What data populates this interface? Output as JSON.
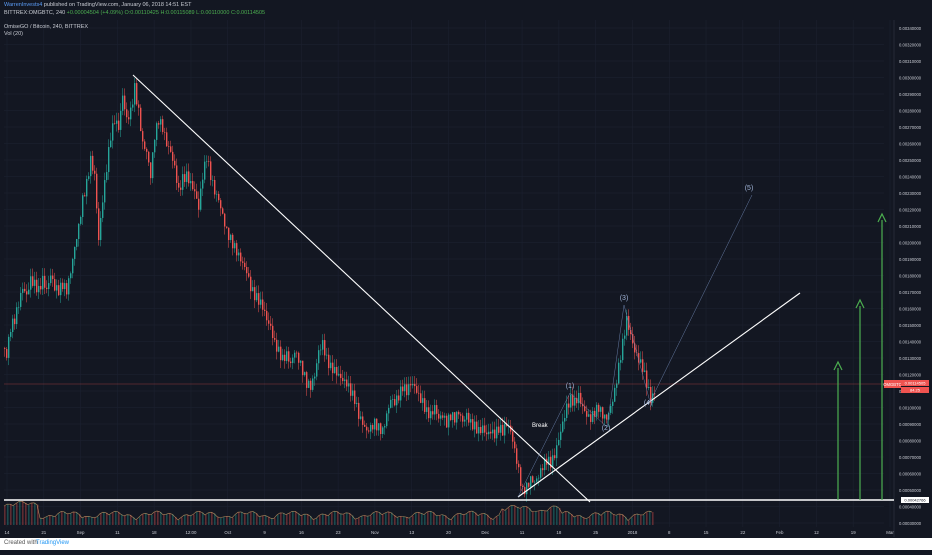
{
  "header": {
    "author": "WarrenInvests4",
    "published": "published on TradingView.com, January 06, 2018 14:51 EST",
    "symbol_line": "BITTREX:OMGBTC, 240",
    "change": "+0.00004504 (+4.09%)",
    "open": "O:0.00110425",
    "high": "H:0.00115089",
    "low": "L:0.00110000",
    "close": "C:0.00114505",
    "title": "OmiseGO / Bitcoin, 240, BITTREX",
    "volume_label": "Vol (20)"
  },
  "footer": {
    "created_with": "Created with",
    "brand": "TradingView"
  },
  "price_tag": {
    "symbol": "OMGBTC",
    "value": "0.00114505",
    "volume_value": "84.25"
  },
  "support_tag": "0.00042766",
  "annotations": {
    "break_label": "Break",
    "waves": [
      "(1)",
      "(2)",
      "(3)",
      "(4)",
      "(5)"
    ]
  },
  "colors": {
    "background": "#131722",
    "up": "#26a69a",
    "down": "#ef5350",
    "trendline": "#ffffff",
    "projection": "#4caf50",
    "wave_label": "#9fb3d6"
  },
  "chart_data": {
    "type": "candlestick",
    "title": "OmiseGO / Bitcoin, 240, BITTREX",
    "y_axis_ticks": [
      "0.00340000",
      "0.00320000",
      "0.00310000",
      "0.00300000",
      "0.00290000",
      "0.00280000",
      "0.00270000",
      "0.00260000",
      "0.00250000",
      "0.00240000",
      "0.00230000",
      "0.00220000",
      "0.00210000",
      "0.00200000",
      "0.00190000",
      "0.00180000",
      "0.00170000",
      "0.00160000",
      "0.00150000",
      "0.00140000",
      "0.00130000",
      "0.00120000",
      "0.00110000",
      "0.00100000",
      "0.00090000",
      "0.00080000",
      "0.00070000",
      "0.00060000",
      "0.00050000",
      "0.00040000",
      "0.00030000"
    ],
    "x_axis_ticks": [
      "14",
      "21",
      "Sep",
      "11",
      "18",
      "12:00",
      "Oct",
      "9",
      "16",
      "23",
      "Nov",
      "13",
      "20",
      "Dec",
      "11",
      "18",
      "25",
      "2018",
      "8",
      "15",
      "22",
      "Feb",
      "12",
      "19",
      "Mar"
    ],
    "ylim": [
      0.0003,
      0.00345
    ],
    "close_path": [
      [
        0,
        0.00142
      ],
      [
        4,
        0.00138
      ],
      [
        8,
        0.00155
      ],
      [
        12,
        0.0016
      ],
      [
        16,
        0.0017
      ],
      [
        20,
        0.0018
      ],
      [
        24,
        0.00175
      ],
      [
        28,
        0.00185
      ],
      [
        32,
        0.00182
      ],
      [
        36,
        0.00178
      ],
      [
        40,
        0.00185
      ],
      [
        44,
        0.00178
      ],
      [
        48,
        0.00188
      ],
      [
        52,
        0.0018
      ],
      [
        56,
        0.00178
      ],
      [
        60,
        0.00182
      ],
      [
        64,
        0.00178
      ],
      [
        68,
        0.0019
      ],
      [
        72,
        0.00205
      ],
      [
        76,
        0.00218
      ],
      [
        80,
        0.00235
      ],
      [
        84,
        0.00245
      ],
      [
        88,
        0.0026
      ],
      [
        92,
        0.0025
      ],
      [
        96,
        0.0021
      ],
      [
        100,
        0.00235
      ],
      [
        104,
        0.00255
      ],
      [
        108,
        0.00275
      ],
      [
        112,
        0.00285
      ],
      [
        116,
        0.0028
      ],
      [
        120,
        0.003
      ],
      [
        124,
        0.00285
      ],
      [
        128,
        0.0029
      ],
      [
        132,
        0.00305
      ],
      [
        136,
        0.0029
      ],
      [
        140,
        0.0027
      ],
      [
        144,
        0.00265
      ],
      [
        148,
        0.0025
      ],
      [
        152,
        0.00275
      ],
      [
        156,
        0.00285
      ],
      [
        160,
        0.0028
      ],
      [
        164,
        0.0027
      ],
      [
        168,
        0.00265
      ],
      [
        172,
        0.00255
      ],
      [
        176,
        0.0024
      ],
      [
        180,
        0.00248
      ],
      [
        184,
        0.0025
      ],
      [
        188,
        0.00245
      ],
      [
        192,
        0.0024
      ],
      [
        196,
        0.0023
      ],
      [
        200,
        0.0025
      ],
      [
        204,
        0.00262
      ],
      [
        208,
        0.0025
      ],
      [
        212,
        0.0024
      ],
      [
        216,
        0.00235
      ],
      [
        220,
        0.00225
      ],
      [
        224,
        0.00215
      ],
      [
        228,
        0.0021
      ],
      [
        232,
        0.00205
      ],
      [
        236,
        0.002
      ],
      [
        240,
        0.00195
      ],
      [
        244,
        0.0019
      ],
      [
        248,
        0.0018
      ],
      [
        252,
        0.00175
      ],
      [
        256,
        0.00172
      ],
      [
        260,
        0.00168
      ],
      [
        264,
        0.0016
      ],
      [
        268,
        0.00155
      ],
      [
        272,
        0.00145
      ],
      [
        276,
        0.0014
      ],
      [
        280,
        0.00135
      ],
      [
        284,
        0.00138
      ],
      [
        288,
        0.00132
      ],
      [
        292,
        0.0014
      ],
      [
        296,
        0.00135
      ],
      [
        300,
        0.00128
      ],
      [
        304,
        0.0012
      ],
      [
        308,
        0.00118
      ],
      [
        312,
        0.00125
      ],
      [
        316,
        0.0014
      ],
      [
        320,
        0.00145
      ],
      [
        324,
        0.00135
      ],
      [
        328,
        0.0013
      ],
      [
        332,
        0.00128
      ],
      [
        336,
        0.00125
      ],
      [
        340,
        0.00122
      ],
      [
        344,
        0.0012
      ],
      [
        348,
        0.00115
      ],
      [
        352,
        0.0011
      ],
      [
        356,
        0.001
      ],
      [
        360,
        0.00095
      ],
      [
        364,
        0.0009
      ],
      [
        368,
        0.00092
      ],
      [
        372,
        0.00095
      ],
      [
        376,
        0.00092
      ],
      [
        380,
        0.0009
      ],
      [
        384,
        0.001
      ],
      [
        388,
        0.0011
      ],
      [
        392,
        0.00108
      ],
      [
        396,
        0.00112
      ],
      [
        400,
        0.00118
      ],
      [
        404,
        0.00115
      ],
      [
        408,
        0.0012
      ],
      [
        412,
        0.00118
      ],
      [
        416,
        0.00112
      ],
      [
        420,
        0.00108
      ],
      [
        424,
        0.00102
      ],
      [
        428,
        0.001
      ],
      [
        432,
        0.00105
      ],
      [
        436,
        0.00098
      ],
      [
        440,
        0.001
      ],
      [
        444,
        0.00095
      ],
      [
        448,
        0.001
      ],
      [
        452,
        0.00098
      ],
      [
        456,
        0.00102
      ],
      [
        460,
        0.00096
      ],
      [
        464,
        0.001
      ],
      [
        468,
        0.00095
      ],
      [
        472,
        0.00093
      ],
      [
        476,
        0.0009
      ],
      [
        480,
        0.00092
      ],
      [
        484,
        0.00088
      ],
      [
        488,
        0.0009
      ],
      [
        492,
        0.00088
      ],
      [
        496,
        0.00092
      ],
      [
        500,
        0.0009
      ],
      [
        504,
        0.00095
      ],
      [
        508,
        0.0009
      ],
      [
        512,
        0.00078
      ],
      [
        516,
        0.00065
      ],
      [
        520,
        0.00052
      ],
      [
        524,
        0.00055
      ],
      [
        528,
        0.0006
      ],
      [
        532,
        0.00058
      ],
      [
        536,
        0.00062
      ],
      [
        540,
        0.00068
      ],
      [
        544,
        0.00072
      ],
      [
        548,
        0.0007
      ],
      [
        552,
        0.00075
      ],
      [
        556,
        0.00085
      ],
      [
        560,
        0.00095
      ],
      [
        564,
        0.00105
      ],
      [
        568,
        0.0011
      ],
      [
        572,
        0.00108
      ],
      [
        576,
        0.00112
      ],
      [
        580,
        0.00105
      ],
      [
        584,
        0.001
      ],
      [
        588,
        0.00098
      ],
      [
        592,
        0.00102
      ],
      [
        596,
        0.00105
      ],
      [
        600,
        0.001
      ],
      [
        604,
        0.00098
      ],
      [
        608,
        0.00105
      ],
      [
        612,
        0.00115
      ],
      [
        616,
        0.0013
      ],
      [
        620,
        0.00145
      ],
      [
        624,
        0.0016
      ],
      [
        628,
        0.0015
      ],
      [
        632,
        0.0014
      ],
      [
        636,
        0.00135
      ],
      [
        640,
        0.0013
      ],
      [
        644,
        0.0012
      ],
      [
        648,
        0.0011
      ],
      [
        652,
        0.00114
      ]
    ]
  }
}
